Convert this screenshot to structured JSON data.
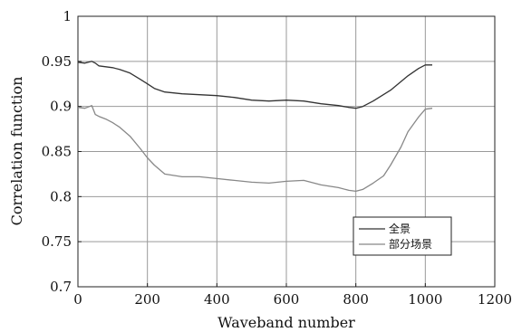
{
  "chart_data": {
    "type": "line",
    "xlabel": "Waveband number",
    "ylabel": "Correlation function",
    "xlim": [
      0,
      1200
    ],
    "ylim": [
      0.7,
      1.0
    ],
    "x_ticks": [
      0,
      200,
      400,
      600,
      800,
      1000,
      1200
    ],
    "y_ticks": [
      0.7,
      0.75,
      0.8,
      0.85,
      0.9,
      0.95,
      1.0
    ],
    "x_tick_labels": [
      "0",
      "200",
      "400",
      "600",
      "800",
      "1000",
      "1200"
    ],
    "y_tick_labels": [
      "0.7",
      "0.75",
      "0.8",
      "0.85",
      "0.9",
      "0.95",
      "1"
    ],
    "grid": true,
    "legend_position": "bottom-right",
    "series": [
      {
        "name": "全景",
        "color": "#333333",
        "x": [
          0,
          20,
          40,
          50,
          60,
          80,
          100,
          120,
          150,
          180,
          200,
          220,
          250,
          300,
          350,
          400,
          450,
          500,
          550,
          600,
          650,
          700,
          750,
          780,
          800,
          820,
          850,
          900,
          950,
          980,
          1000,
          1020
        ],
        "y": [
          0.949,
          0.948,
          0.95,
          0.948,
          0.945,
          0.944,
          0.943,
          0.941,
          0.937,
          0.93,
          0.925,
          0.92,
          0.916,
          0.914,
          0.913,
          0.912,
          0.91,
          0.907,
          0.906,
          0.907,
          0.906,
          0.903,
          0.901,
          0.899,
          0.898,
          0.9,
          0.906,
          0.918,
          0.934,
          0.942,
          0.946,
          0.946
        ]
      },
      {
        "name": "部分场景",
        "color": "#888888",
        "x": [
          0,
          20,
          40,
          50,
          60,
          80,
          100,
          120,
          150,
          180,
          200,
          220,
          250,
          300,
          350,
          400,
          450,
          500,
          550,
          600,
          650,
          700,
          750,
          780,
          800,
          820,
          850,
          880,
          900,
          930,
          950,
          980,
          1000,
          1020
        ],
        "y": [
          0.899,
          0.898,
          0.901,
          0.891,
          0.889,
          0.886,
          0.882,
          0.877,
          0.867,
          0.853,
          0.843,
          0.835,
          0.825,
          0.822,
          0.822,
          0.82,
          0.818,
          0.816,
          0.815,
          0.817,
          0.818,
          0.813,
          0.81,
          0.807,
          0.806,
          0.808,
          0.815,
          0.823,
          0.835,
          0.855,
          0.872,
          0.888,
          0.897,
          0.898
        ]
      }
    ]
  }
}
